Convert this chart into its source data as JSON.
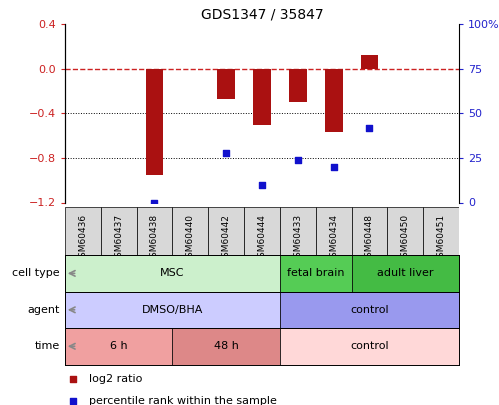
{
  "title": "GDS1347 / 35847",
  "samples": [
    "GSM60436",
    "GSM60437",
    "GSM60438",
    "GSM60440",
    "GSM60442",
    "GSM60444",
    "GSM60433",
    "GSM60434",
    "GSM60448",
    "GSM60450",
    "GSM60451"
  ],
  "log2_ratio": [
    0.0,
    0.0,
    -0.95,
    0.0,
    -0.27,
    -0.5,
    -0.3,
    -0.57,
    0.12,
    0.0,
    0.0
  ],
  "percentile_rank": [
    null,
    null,
    0.0,
    null,
    28.0,
    10.0,
    24.0,
    20.0,
    42.0,
    null,
    null
  ],
  "ylim_left": [
    -1.2,
    0.4
  ],
  "ylim_right": [
    0,
    100
  ],
  "yticks_left": [
    -1.2,
    -0.8,
    -0.4,
    0.0,
    0.4
  ],
  "yticks_right": [
    0,
    25,
    50,
    75,
    100
  ],
  "ytick_labels_right": [
    "0",
    "25",
    "50",
    "75",
    "100%"
  ],
  "cell_type_groups": [
    {
      "label": "MSC",
      "start": 0,
      "end": 6,
      "color": "#ccf0cc"
    },
    {
      "label": "fetal brain",
      "start": 6,
      "end": 8,
      "color": "#55cc55"
    },
    {
      "label": "adult liver",
      "start": 8,
      "end": 11,
      "color": "#44bb44"
    }
  ],
  "agent_groups": [
    {
      "label": "DMSO/BHA",
      "start": 0,
      "end": 6,
      "color": "#ccccff"
    },
    {
      "label": "control",
      "start": 6,
      "end": 11,
      "color": "#9999ee"
    }
  ],
  "time_groups": [
    {
      "label": "6 h",
      "start": 0,
      "end": 3,
      "color": "#f0a0a0"
    },
    {
      "label": "48 h",
      "start": 3,
      "end": 6,
      "color": "#dd8888"
    },
    {
      "label": "control",
      "start": 6,
      "end": 11,
      "color": "#ffd8d8"
    }
  ],
  "row_labels": [
    "cell type",
    "agent",
    "time"
  ],
  "bar_color": "#aa1111",
  "dot_color": "#1111cc",
  "zero_line_color": "#cc2222",
  "tick_color_left": "#cc2222",
  "tick_color_right": "#2222cc",
  "sample_box_color": "#d8d8d8",
  "legend_items": [
    {
      "color": "#aa1111",
      "label": "log2 ratio"
    },
    {
      "color": "#1111cc",
      "label": "percentile rank within the sample"
    }
  ]
}
